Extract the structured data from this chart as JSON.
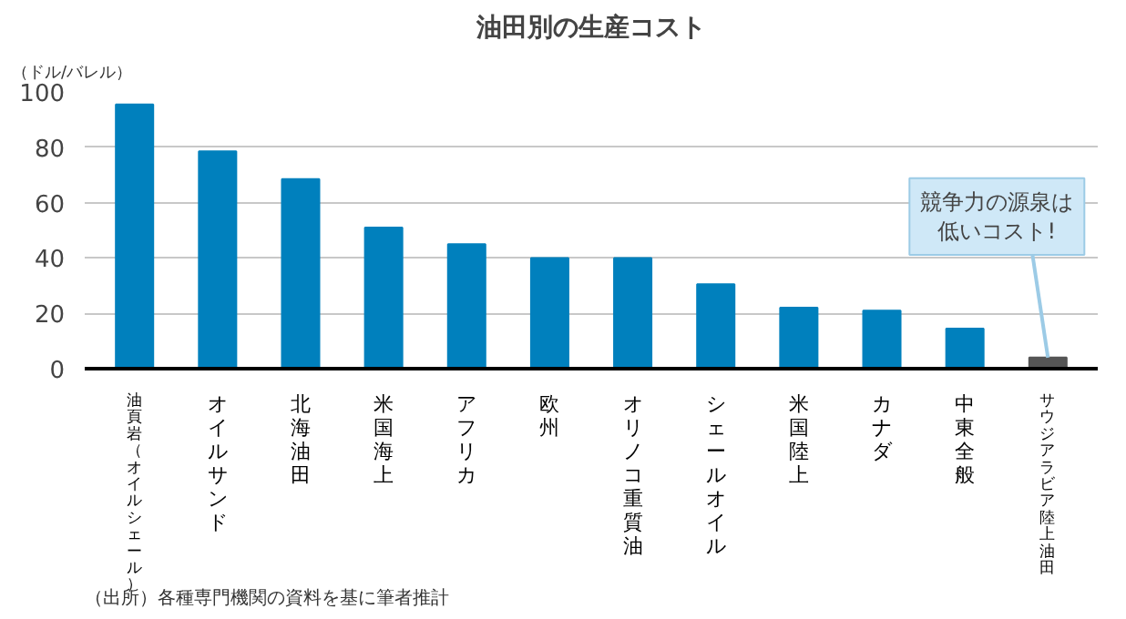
{
  "chart_data": {
    "type": "bar",
    "title": "油田別の生産コスト",
    "ylabel": "（ドル/バレル）",
    "categories": [
      "油頁岩（オイルシェール）",
      "オイルサンド",
      "北海油田",
      "米国海上",
      "アフリカ",
      "欧州",
      "オリノコ重質油",
      "シェールオイル",
      "米国陸上",
      "カナダ",
      "中東全般",
      "サウジアラビア陸上油田"
    ],
    "values": [
      95.5,
      78.5,
      68.5,
      51,
      45,
      40,
      40,
      30.5,
      22,
      21,
      14.5,
      4
    ],
    "colors": [
      "#0080bd",
      "#0080bd",
      "#0080bd",
      "#0080bd",
      "#0080bd",
      "#0080bd",
      "#0080bd",
      "#0080bd",
      "#0080bd",
      "#0080bd",
      "#0080bd",
      "#555555"
    ],
    "ylim": [
      0,
      100
    ],
    "yticks": [
      0,
      20,
      40,
      60,
      80,
      100
    ],
    "grid": "y",
    "annotations": [
      {
        "text": "競争力の源泉は低いコスト!",
        "x": "サウジアラビア陸上油田",
        "y": 4
      },
      "（出所）各種専門機関の資料を基に筆者推計"
    ]
  }
}
